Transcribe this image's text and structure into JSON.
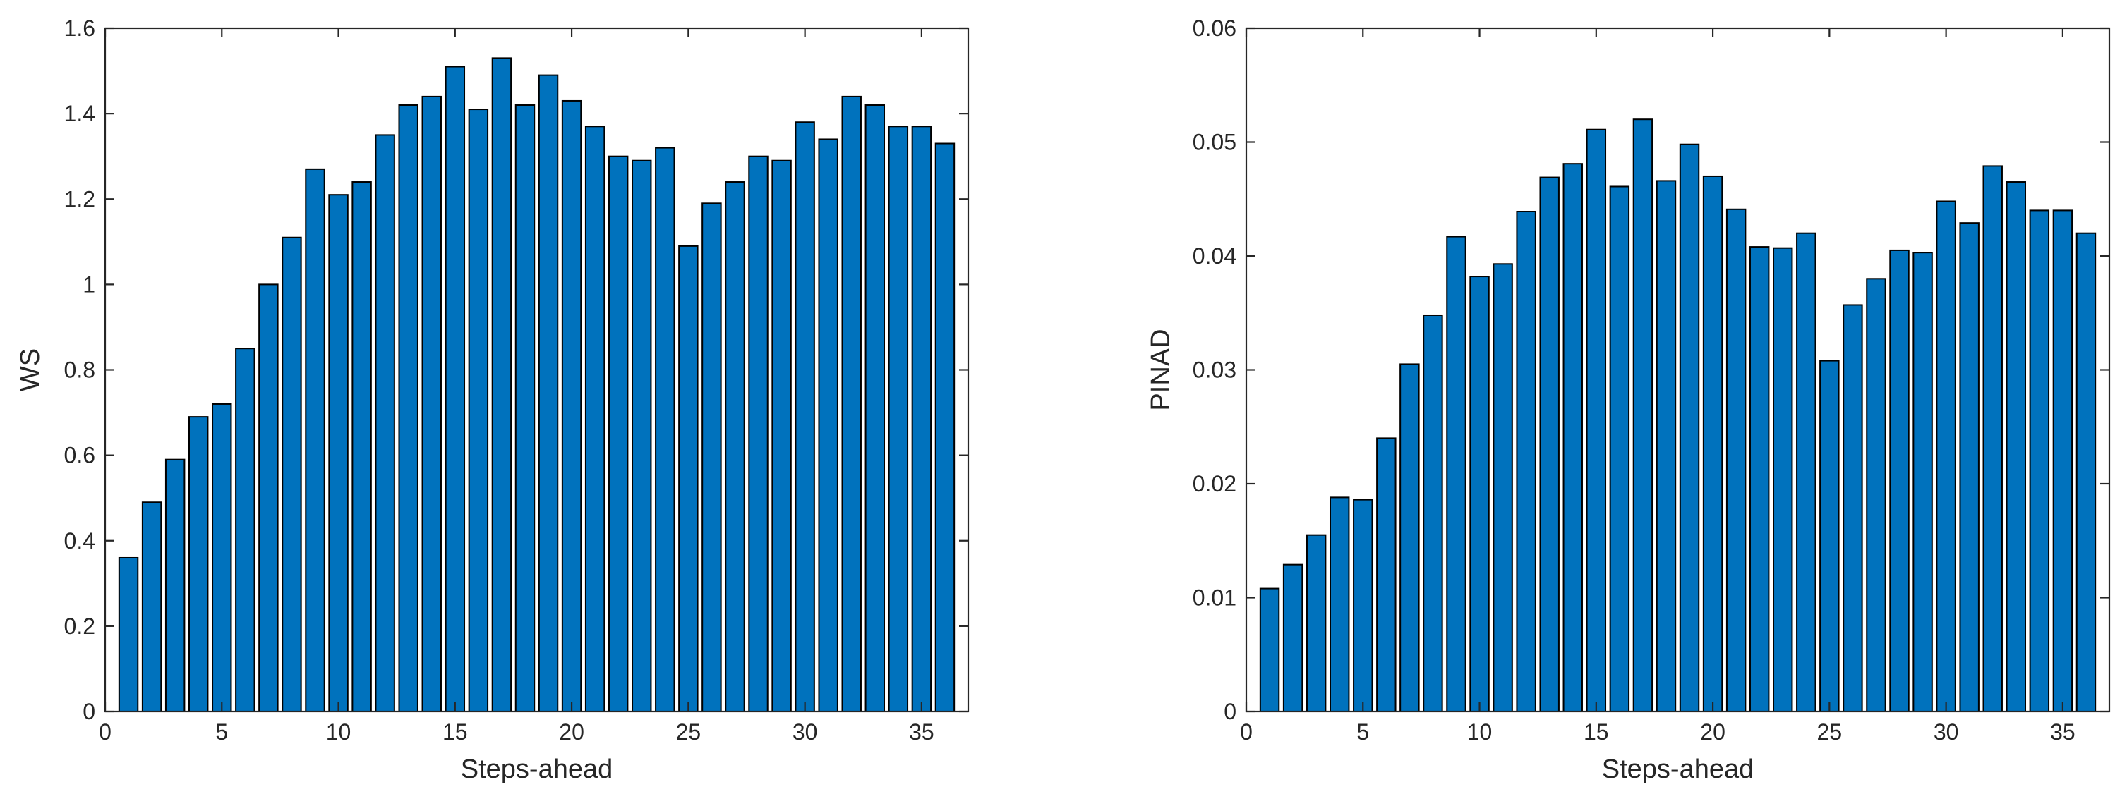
{
  "chart_data": [
    {
      "type": "bar",
      "xlabel": "Steps-ahead",
      "ylabel": "WS",
      "xlim": [
        0,
        37
      ],
      "ylim": [
        0,
        1.6
      ],
      "xticks": [
        0,
        5,
        10,
        15,
        20,
        25,
        30,
        35
      ],
      "yticks": [
        0,
        0.2,
        0.4,
        0.6,
        0.8,
        1,
        1.2,
        1.4,
        1.6
      ],
      "ytick_labels": [
        "0",
        "0.2",
        "0.4",
        "0.6",
        "0.8",
        "1",
        "1.2",
        "1.4",
        "1.6"
      ],
      "x": [
        1,
        2,
        3,
        4,
        5,
        6,
        7,
        8,
        9,
        10,
        11,
        12,
        13,
        14,
        15,
        16,
        17,
        18,
        19,
        20,
        21,
        22,
        23,
        24,
        25,
        26,
        27,
        28,
        29,
        30,
        31,
        32,
        33,
        34,
        35,
        36
      ],
      "values": [
        0.36,
        0.49,
        0.59,
        0.69,
        0.72,
        0.85,
        1.0,
        1.11,
        1.27,
        1.21,
        1.24,
        1.35,
        1.42,
        1.44,
        1.51,
        1.41,
        1.53,
        1.42,
        1.49,
        1.43,
        1.37,
        1.3,
        1.29,
        1.32,
        1.09,
        1.19,
        1.24,
        1.3,
        1.29,
        1.38,
        1.34,
        1.44,
        1.42,
        1.37,
        1.37,
        1.33
      ],
      "bar_color": "#0072BD",
      "grid": false
    },
    {
      "type": "bar",
      "xlabel": "Steps-ahead",
      "ylabel": "PINAD",
      "xlim": [
        0,
        37
      ],
      "ylim": [
        0,
        0.06
      ],
      "xticks": [
        0,
        5,
        10,
        15,
        20,
        25,
        30,
        35
      ],
      "yticks": [
        0,
        0.01,
        0.02,
        0.03,
        0.04,
        0.05,
        0.06
      ],
      "ytick_labels": [
        "0",
        "0.01",
        "0.02",
        "0.03",
        "0.04",
        "0.05",
        "0.06"
      ],
      "x": [
        1,
        2,
        3,
        4,
        5,
        6,
        7,
        8,
        9,
        10,
        11,
        12,
        13,
        14,
        15,
        16,
        17,
        18,
        19,
        20,
        21,
        22,
        23,
        24,
        25,
        26,
        27,
        28,
        29,
        30,
        31,
        32,
        33,
        34,
        35,
        36
      ],
      "values": [
        0.0108,
        0.0129,
        0.0155,
        0.0188,
        0.0186,
        0.024,
        0.0305,
        0.0348,
        0.0417,
        0.0382,
        0.0393,
        0.0439,
        0.0469,
        0.0481,
        0.0511,
        0.0461,
        0.052,
        0.0466,
        0.0498,
        0.047,
        0.0441,
        0.0408,
        0.0407,
        0.042,
        0.0308,
        0.0357,
        0.038,
        0.0405,
        0.0403,
        0.0448,
        0.0429,
        0.0479,
        0.0465,
        0.044,
        0.044,
        0.042
      ],
      "bar_color": "#0072BD",
      "grid": false
    }
  ]
}
